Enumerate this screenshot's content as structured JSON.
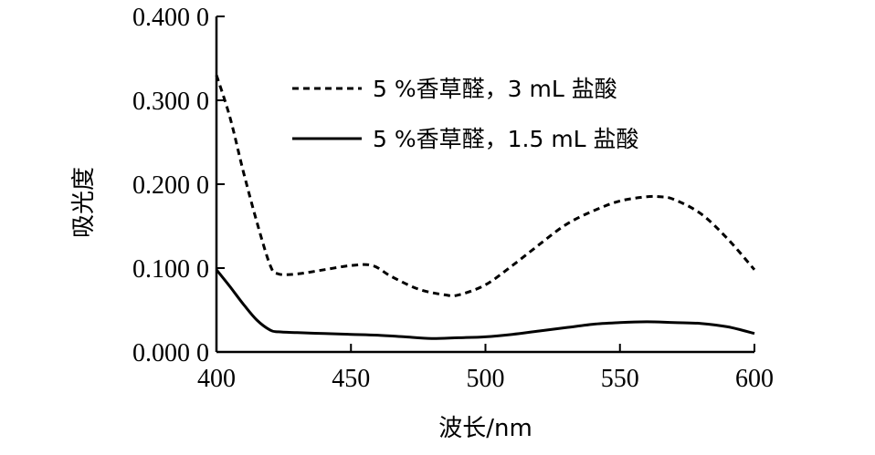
{
  "chart_data": {
    "type": "line",
    "xlabel": "波长/nm",
    "ylabel": "吸光度",
    "xlim": [
      400,
      600
    ],
    "ylim": [
      0,
      0.4
    ],
    "x_ticks": [
      "400",
      "450",
      "500",
      "550",
      "600"
    ],
    "y_ticks": [
      "0.000 0",
      "0.100 0",
      "0.200 0",
      "0.300 0",
      "0.400 0"
    ],
    "grid": false,
    "legend_position": "top-center",
    "series": [
      {
        "name": "5 %香草醛，3 mL 盐酸",
        "style": "dashed",
        "color": "#000000",
        "x": [
          400,
          405,
          410,
          415,
          420,
          423,
          430,
          440,
          450,
          458,
          465,
          475,
          485,
          490,
          500,
          510,
          520,
          530,
          540,
          550,
          560,
          565,
          570,
          580,
          590,
          600
        ],
        "y": [
          0.33,
          0.28,
          0.215,
          0.155,
          0.103,
          0.093,
          0.093,
          0.098,
          0.103,
          0.103,
          0.09,
          0.075,
          0.068,
          0.068,
          0.08,
          0.103,
          0.128,
          0.152,
          0.168,
          0.18,
          0.185,
          0.185,
          0.182,
          0.165,
          0.135,
          0.098
        ]
      },
      {
        "name": "5 %香草醛，1.5 mL 盐酸",
        "style": "solid",
        "color": "#000000",
        "x": [
          400,
          405,
          410,
          415,
          420,
          423,
          430,
          440,
          450,
          460,
          470,
          480,
          490,
          500,
          510,
          520,
          530,
          540,
          550,
          560,
          570,
          580,
          590,
          600
        ],
        "y": [
          0.098,
          0.078,
          0.057,
          0.038,
          0.026,
          0.024,
          0.023,
          0.022,
          0.021,
          0.02,
          0.018,
          0.016,
          0.017,
          0.018,
          0.021,
          0.025,
          0.029,
          0.033,
          0.035,
          0.036,
          0.035,
          0.034,
          0.03,
          0.022
        ]
      }
    ]
  }
}
